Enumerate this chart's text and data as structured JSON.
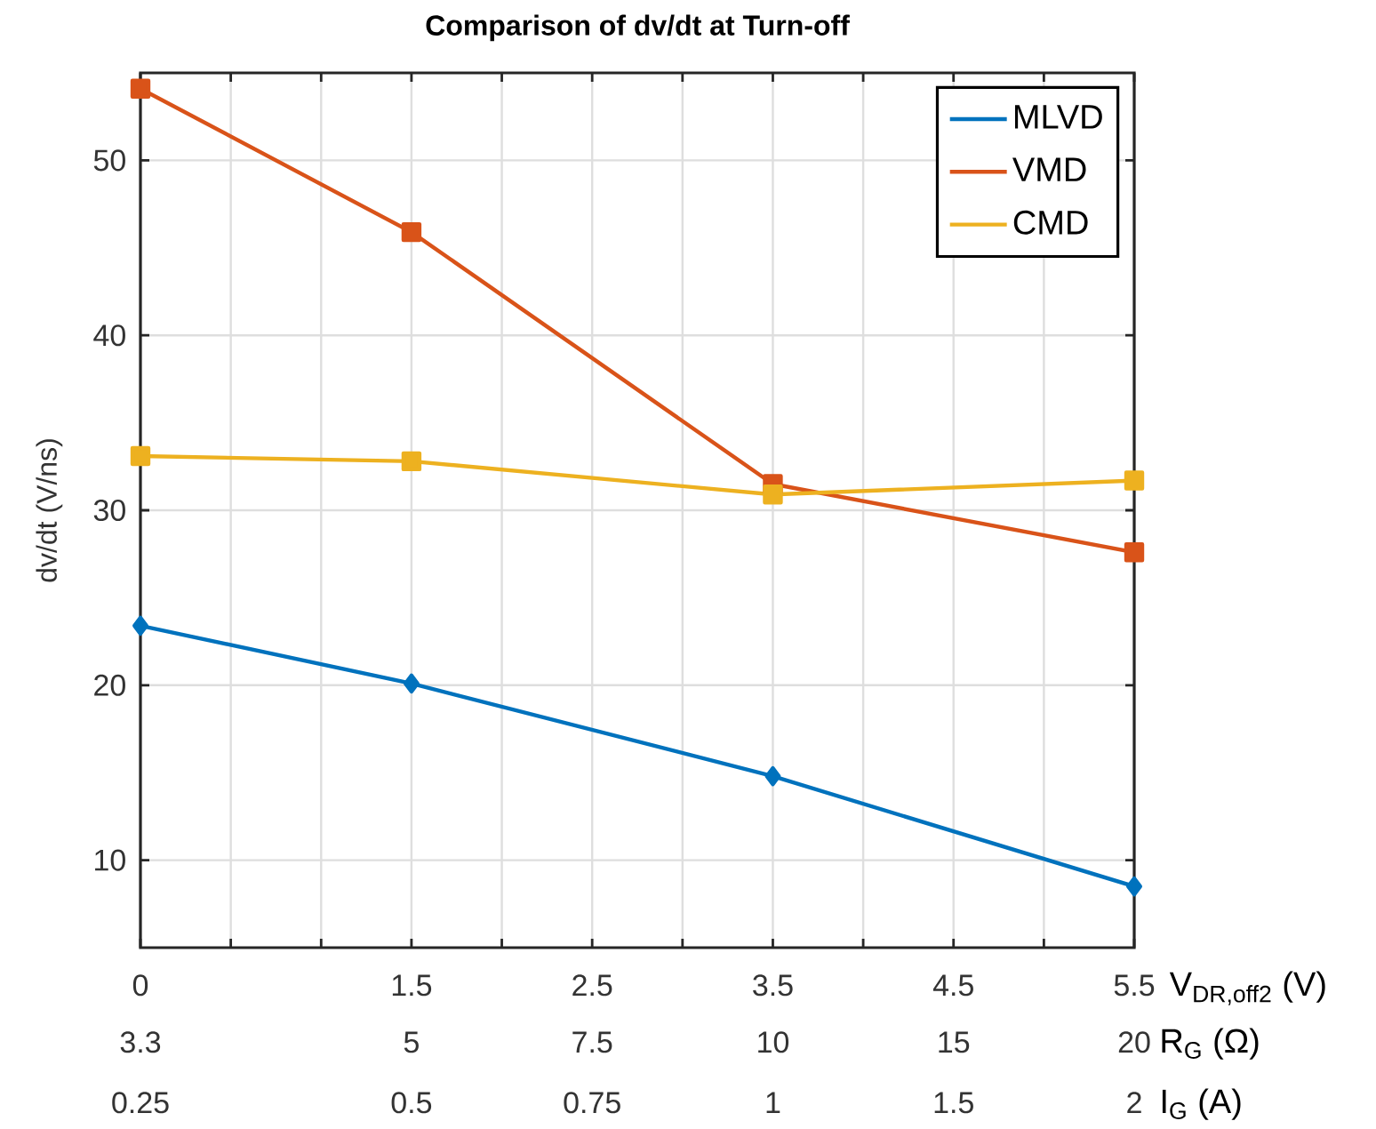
{
  "chart_data": {
    "type": "line",
    "title": "Comparison of dv/dt at Turn-off",
    "xlabel": "V$_{DR,off2}$ (V)",
    "ylabel": "dv/dt (V/ns)",
    "x": [
      0,
      1.5,
      3.5,
      5.5
    ],
    "series": [
      {
        "name": "MLVD",
        "color": "#0072bd",
        "marker": "diamond",
        "values": [
          23.4,
          20.1,
          14.8,
          8.5
        ]
      },
      {
        "name": "VMD",
        "color": "#d95319",
        "marker": "square",
        "values": [
          54.1,
          45.9,
          31.5,
          27.6
        ]
      },
      {
        "name": "CMD",
        "color": "#edb120",
        "marker": "square",
        "values": [
          33.1,
          32.8,
          30.9,
          31.7
        ]
      }
    ],
    "xlim": [
      0,
      5.5
    ],
    "ylim": [
      5,
      55
    ],
    "xticks": [
      0,
      {
        "value": 0.5,
        "label": null
      },
      {
        "value": 1,
        "label": null
      },
      1.5,
      {
        "value": 2,
        "label": null
      },
      2.5,
      {
        "value": 3,
        "label": null
      },
      3.5,
      {
        "value": 4,
        "label": null
      },
      4.5,
      {
        "value": 5,
        "label": null
      },
      5.5
    ],
    "yticks": [
      10,
      20,
      30,
      40,
      50
    ],
    "annotations": [
      "3.3",
      "5",
      "7.5",
      "10",
      "15",
      "20",
      "R$_{G}$ (Ω)",
      "0.25",
      "0.5",
      "0.75",
      "1",
      "1.5",
      "2",
      "I$_{G}$ (A)"
    ],
    "grid": true,
    "legend": "top right",
    "line_style": "solid"
  }
}
